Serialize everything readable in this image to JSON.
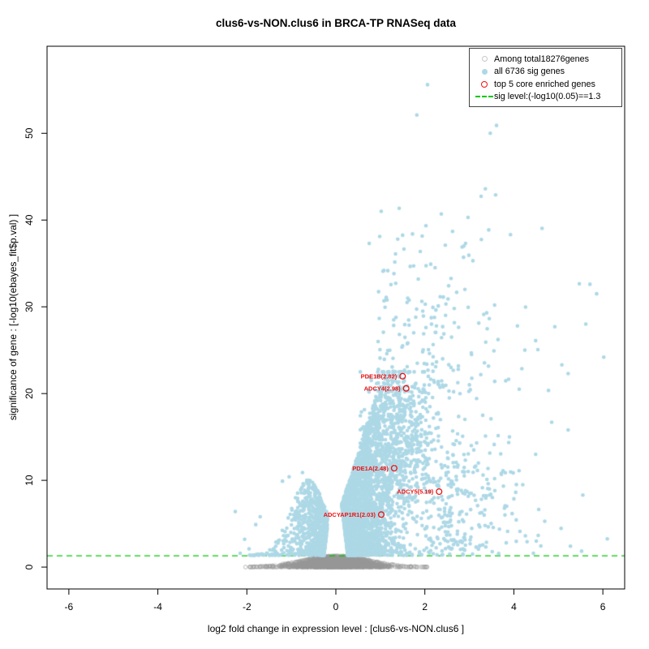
{
  "chart_data": {
    "type": "scatter",
    "subtype": "volcano-plot",
    "title": "clus6-vs-NON.clus6 in BRCA-TP RNASeq data",
    "xlabel": "log2 fold change in expression level : [clus6-vs-NON.clus6 ]",
    "ylabel": "significance of gene : [-log10(ebayes_fit$p.val) ]",
    "xlim": [
      -6.49,
      6.49
    ],
    "ylim": [
      -2.52,
      60.03
    ],
    "xticks": [
      -6,
      -4,
      -2,
      0,
      2,
      4,
      6
    ],
    "yticks": [
      0,
      10,
      20,
      30,
      40,
      50
    ],
    "grid": false,
    "legend_position": "top-right",
    "sig_level": 1.3,
    "total_genes": 18276,
    "sig_genes": 6736,
    "legend": [
      {
        "marker": "open-circle",
        "color": "#c8c8c8",
        "label": "Among total18276genes"
      },
      {
        "marker": "filled-circle",
        "color": "#add8e6",
        "label": "all 6736 sig genes"
      },
      {
        "marker": "open-circle-bold",
        "color": "#ee1111",
        "label": "top 5 core enriched genes"
      },
      {
        "marker": "dashed-line",
        "color": "#00c800",
        "label": "sig level:(-log10(0.05)==1.3"
      }
    ],
    "labeled_points": [
      {
        "gene": "PDE1B",
        "fold_change": 2.82,
        "label": "PDE1B(2.82)",
        "x": 1.5,
        "y": 22.0
      },
      {
        "gene": "ADCY4",
        "fold_change": 2.98,
        "label": "ADCY4(2.98)",
        "x": 1.58,
        "y": 20.6
      },
      {
        "gene": "PDE1A",
        "fold_change": 2.48,
        "label": "PDE1A(2.48)",
        "x": 1.31,
        "y": 11.4
      },
      {
        "gene": "ADCY5",
        "fold_change": 5.19,
        "label": "ADCY5(5.19)",
        "x": 2.32,
        "y": 8.7
      },
      {
        "gene": "ADCYAP1R1",
        "fold_change": 2.03,
        "label": "ADCYAP1R1(2.03)",
        "x": 1.02,
        "y": 6.05
      }
    ],
    "feature_points": [
      [
        2.06,
        55.6
      ],
      [
        1.82,
        52.1
      ],
      [
        3.61,
        50.9
      ],
      [
        3.47,
        50.0
      ],
      [
        3.36,
        43.6
      ],
      [
        3.59,
        42.9
      ],
      [
        2.37,
        40.7
      ],
      [
        2.97,
        40.3
      ],
      [
        1.39,
        37.8
      ],
      [
        2.46,
        37.1
      ],
      [
        1.06,
        34.1
      ],
      [
        2.23,
        34.5
      ],
      [
        5.71,
        32.6
      ],
      [
        5.86,
        31.5
      ],
      [
        2.01,
        30.3
      ],
      [
        2.66,
        29.8
      ],
      [
        3.39,
        29.3
      ],
      [
        6.02,
        24.2
      ],
      [
        5.22,
        22.3
      ],
      [
        4.49,
        26.1
      ],
      [
        4.92,
        27.7
      ],
      [
        2.75,
        22.8
      ],
      [
        3.57,
        21.4
      ],
      [
        4.12,
        20.5
      ],
      [
        4.85,
        16.7
      ],
      [
        5.22,
        15.8
      ],
      [
        4.49,
        13.0
      ],
      [
        3.05,
        24.5
      ],
      [
        2.6,
        26.5
      ],
      [
        2.9,
        32.0
      ],
      [
        2.15,
        28.0
      ],
      [
        1.6,
        30.5
      ],
      [
        1.75,
        27.0
      ],
      [
        1.5,
        25.5
      ],
      [
        2.4,
        24.0
      ],
      [
        5.55,
        8.3
      ],
      [
        4.2,
        9.5
      ],
      [
        3.8,
        6.0
      ],
      [
        1.02,
        41.0
      ],
      [
        0.75,
        37.3
      ],
      [
        3.3,
        17.5
      ],
      [
        3.9,
        15.0
      ],
      [
        3.1,
        13.5
      ],
      [
        2.85,
        11.0
      ],
      [
        3.45,
        9.0
      ],
      [
        2.55,
        19.5
      ],
      [
        2.35,
        17.0
      ],
      [
        2.2,
        21.5
      ],
      [
        1.95,
        24.8
      ],
      [
        1.3,
        28.5
      ],
      [
        1.15,
        30.8
      ],
      [
        0.95,
        26.0
      ],
      [
        -2.26,
        6.4
      ],
      [
        -2.05,
        3.2
      ],
      [
        -1.95,
        2.1
      ],
      [
        -2.15,
        1.6
      ],
      [
        -1.8,
        4.9
      ],
      [
        -1.7,
        5.8
      ],
      [
        -1.2,
        9.9
      ],
      [
        -1.05,
        10.4
      ],
      [
        -0.75,
        10.9
      ]
    ],
    "clusters": [
      {
        "kind": "dome",
        "n": 3000,
        "x_sigma": 0.5,
        "x_clip": 2.05,
        "y_top": 1.32,
        "edge_sigma": 0.75,
        "y_pow": 1.6,
        "fringe_frac": 0.1
      },
      {
        "kind": "volcano",
        "side": -1,
        "n": 1000,
        "x0": 0.1,
        "x_sigma": 0.42,
        "x_max": 1.95,
        "peak_x": 0.62,
        "peak_y": 10.2,
        "base_y": 1.35,
        "width": 0.55,
        "y_pow": 1.5,
        "fringe_frac": 0.08
      },
      {
        "kind": "volcano",
        "side": 1,
        "n": 3200,
        "x0": 0.1,
        "x_sigma": 0.6,
        "x_max": 2.9,
        "peak_x": 1.3,
        "peak_y": 22.5,
        "base_y": 1.35,
        "width": 1.05,
        "y_pow": 1.4,
        "fringe_frac": 0.06
      },
      {
        "kind": "blob",
        "n": 500,
        "abs": false,
        "x_mean": 1.45,
        "x_sigma": 0.42,
        "x_min": 0.55,
        "x_max": 2.3,
        "y_mean": 15,
        "y_sigma": 4.2,
        "y_min": 8,
        "y_max": 22.5
      },
      {
        "kind": "blob",
        "n": 160,
        "abs": true,
        "x_mean": 0.95,
        "x_sigma": 1.5,
        "x_min": 0.95,
        "x_max": 6.0,
        "y_mean": 20,
        "y_sigma": 9.5,
        "y_min": 20,
        "y_max": 54
      },
      {
        "kind": "blob",
        "n": 130,
        "abs": true,
        "x_mean": 2.0,
        "x_sigma": 1.3,
        "x_min": 2.0,
        "x_max": 6.1,
        "y_mean": 1.4,
        "y_sigma": 4.5,
        "y_min": 1.4,
        "y_max": 14
      },
      {
        "kind": "blob",
        "n": 90,
        "abs": true,
        "x_mean": 2.3,
        "x_sigma": 0.9,
        "x_min": 2.2,
        "x_max": 5.0,
        "y_mean": 8,
        "y_sigma": 5,
        "y_min": 2,
        "y_max": 24
      }
    ],
    "colors": {
      "point_all": "rgba(150,150,150,0.4)",
      "point_sig": "#add8e6",
      "enriched": "#ee1111",
      "sig_line": "#00c800",
      "frame": "#000000"
    },
    "seed": 42
  }
}
